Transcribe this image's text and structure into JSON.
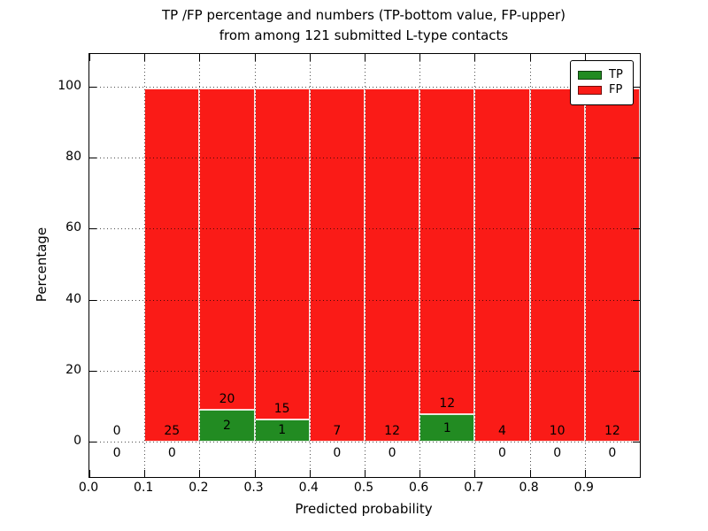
{
  "chart_data": {
    "type": "bar",
    "variant": "stacked-percentage-histogram",
    "title_lines": [
      "TP /FP percentage and numbers (TP-bottom value, FP-upper)",
      "from among 121 submitted L-type contacts"
    ],
    "xlabel": "Predicted probability",
    "ylabel": "Percentage",
    "x_tick_labels": [
      "0.0",
      "0.1",
      "0.2",
      "0.3",
      "0.4",
      "0.5",
      "0.6",
      "0.7",
      "0.8",
      "0.9"
    ],
    "y_tick_values": [
      0,
      20,
      40,
      60,
      80,
      100
    ],
    "ylim": [
      -10,
      110
    ],
    "xlim": [
      0.0,
      1.0
    ],
    "grid": "dotted, both axes, drawn over bars",
    "total_contacts": 121,
    "bins": [
      {
        "x_range": [
          0.0,
          0.1
        ],
        "tp": 0,
        "fp": 0
      },
      {
        "x_range": [
          0.1,
          0.2
        ],
        "tp": 0,
        "fp": 25
      },
      {
        "x_range": [
          0.2,
          0.3
        ],
        "tp": 2,
        "fp": 20
      },
      {
        "x_range": [
          0.3,
          0.4
        ],
        "tp": 1,
        "fp": 15
      },
      {
        "x_range": [
          0.4,
          0.5
        ],
        "tp": 0,
        "fp": 7
      },
      {
        "x_range": [
          0.5,
          0.6
        ],
        "tp": 0,
        "fp": 12
      },
      {
        "x_range": [
          0.6,
          0.7
        ],
        "tp": 1,
        "fp": 12
      },
      {
        "x_range": [
          0.7,
          0.8
        ],
        "tp": 0,
        "fp": 4
      },
      {
        "x_range": [
          0.8,
          0.9
        ],
        "tp": 0,
        "fp": 10
      },
      {
        "x_range": [
          0.9,
          1.0
        ],
        "tp": 0,
        "fp": 12
      }
    ],
    "bar_rule": "green TP segment height = tp/(tp+fp)*100, red FP segment stacked above to 100%; empty bin (0 contacts) draws no bar",
    "legend": {
      "position": "upper right",
      "entries": [
        {
          "label": "TP",
          "color": "#228b22"
        },
        {
          "label": "FP",
          "color": "#fa1b17"
        }
      ]
    },
    "colors": {
      "tp": "#228b22",
      "fp": "#fa1b17",
      "grid": "#000000",
      "text": "#000000"
    }
  }
}
